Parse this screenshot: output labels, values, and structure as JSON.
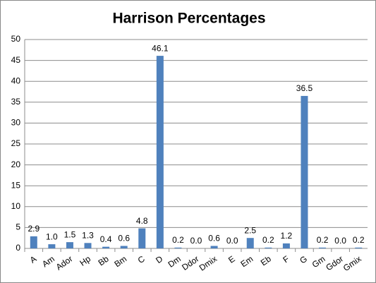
{
  "chart_data": {
    "type": "bar",
    "title": "Harrison Percentages",
    "categories": [
      "A",
      "Am",
      "Ador",
      "Hp",
      "Bb",
      "Bm",
      "C",
      "D",
      "Dm",
      "Ddor",
      "Dmix",
      "E",
      "Em",
      "Eb",
      "F",
      "G",
      "Gm",
      "Gdor",
      "Gmix"
    ],
    "values": [
      2.9,
      1.0,
      1.5,
      1.3,
      0.4,
      0.6,
      4.8,
      46.1,
      0.2,
      0.0,
      0.6,
      0.0,
      2.5,
      0.2,
      1.2,
      36.5,
      0.2,
      0.0,
      0.2
    ],
    "value_labels": [
      "2.9",
      "1.0",
      "1.5",
      "1.3",
      "0.4",
      "0.6",
      "4.8",
      "46.1",
      "0.2",
      "0.0",
      "0.6",
      "0.0",
      "2.5",
      "0.2",
      "1.2",
      "36.5",
      "0.2",
      "0.0",
      "0.2"
    ],
    "color": "#4f81bd",
    "ylim": [
      0,
      50
    ],
    "yticks": [
      0,
      5,
      10,
      15,
      20,
      25,
      30,
      35,
      40,
      45,
      50
    ],
    "grid": true
  }
}
